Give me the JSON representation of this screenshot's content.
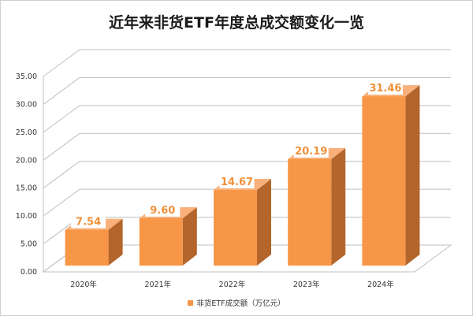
{
  "chart_data": {
    "type": "bar",
    "title": "近年来非货ETF年度总成交额变化一览",
    "categories": [
      "2020年",
      "2021年",
      "2022年",
      "2023年",
      "2024年"
    ],
    "series": [
      {
        "name": "非货ETF成交额（万亿元）",
        "values": [
          7.54,
          9.6,
          14.67,
          20.19,
          31.46
        ]
      }
    ],
    "data_labels": [
      "7.54",
      "9.60",
      "14.67",
      "20.19",
      "31.46"
    ],
    "yticks": [
      "0.00",
      "5.00",
      "10.00",
      "15.00",
      "20.00",
      "25.00",
      "30.00",
      "35.00"
    ],
    "ylim": [
      0,
      35
    ],
    "grid": true,
    "style": "3d",
    "legend_position": "bottom",
    "colors": {
      "bar_front": "#f79646",
      "bar_side": "#b3652b",
      "bar_top": "#f9b07a",
      "label": "#f0913a"
    }
  }
}
